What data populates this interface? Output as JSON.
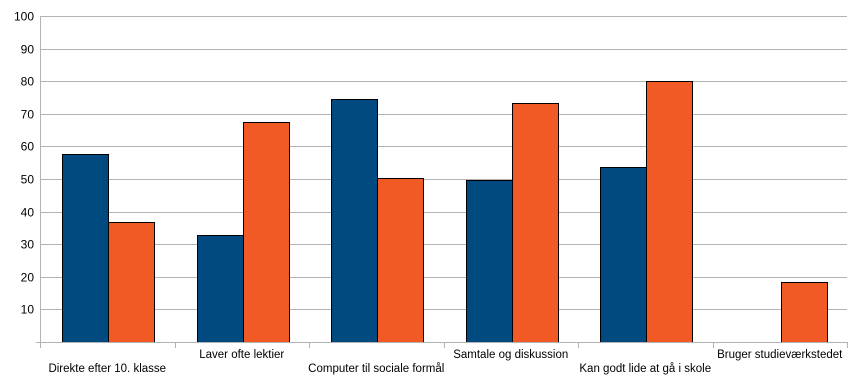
{
  "chart_data": {
    "type": "bar",
    "categories": [
      "Direkte efter 10. klasse",
      "Laver ofte lektier",
      "Computer til sociale formål",
      "Samtale og diskussion",
      "Kan godt lide at gå i skole",
      "Bruger studieværkstedet"
    ],
    "series": [
      {
        "values": [
          57.6,
          32.8,
          74.6,
          49.8,
          53.8,
          0
        ],
        "color": "#004a80"
      },
      {
        "values": [
          36.7,
          67.4,
          50.4,
          73.3,
          80.0,
          18.4
        ],
        "color": "#f15a24"
      }
    ],
    "yticks": [
      "10",
      "20",
      "30",
      "40",
      "50",
      "60",
      "70",
      "80",
      "90",
      "100"
    ],
    "ylim": [
      0,
      100
    ],
    "grid": true,
    "legend": "none"
  }
}
